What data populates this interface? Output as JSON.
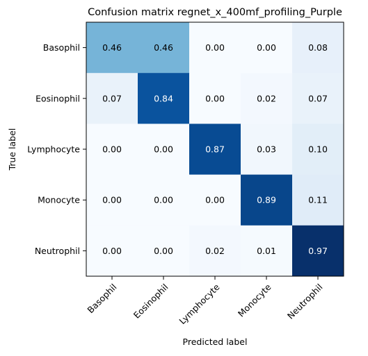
{
  "chart_data": {
    "type": "heatmap",
    "title": "Confusion matrix regnet_x_400mf_profiling_Purple",
    "xlabel": "Predicted label",
    "ylabel": "True label",
    "x_categories": [
      "Basophil",
      "Eosinophil",
      "Lymphocyte",
      "Monocyte",
      "Neutrophil"
    ],
    "y_categories": [
      "Basophil",
      "Eosinophil",
      "Lymphocyte",
      "Monocyte",
      "Neutrophil"
    ],
    "values": [
      [
        0.46,
        0.46,
        0.0,
        0.0,
        0.08
      ],
      [
        0.07,
        0.84,
        0.0,
        0.02,
        0.07
      ],
      [
        0.0,
        0.0,
        0.87,
        0.03,
        0.1
      ],
      [
        0.0,
        0.0,
        0.0,
        0.89,
        0.11
      ],
      [
        0.0,
        0.0,
        0.02,
        0.01,
        0.97
      ]
    ],
    "value_format": "0.00",
    "colormap": "Blues",
    "vmin": 0,
    "vmax": 0.97,
    "x_tick_rotation": 45,
    "grid": false,
    "legend": "none"
  }
}
